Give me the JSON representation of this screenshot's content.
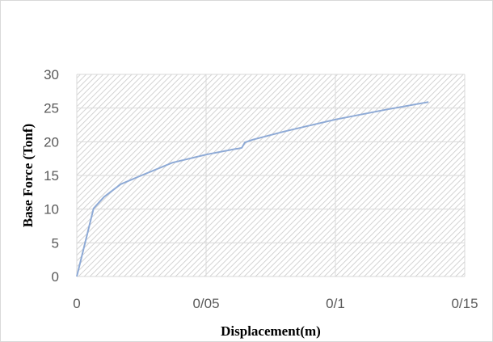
{
  "chart_data": {
    "type": "line",
    "title": "",
    "xlabel": "Displacement(m)",
    "ylabel": "Base Force (Tonf)",
    "xlim": [
      0,
      0.15
    ],
    "ylim": [
      0,
      30
    ],
    "x_ticks": [
      0,
      0.05,
      0.1,
      0.15
    ],
    "x_tick_labels": [
      "0",
      "0/05",
      "0/1",
      "0/15"
    ],
    "y_ticks": [
      0,
      5,
      10,
      15,
      20,
      25,
      30
    ],
    "y_tick_labels": [
      "0",
      "5",
      "10",
      "15",
      "20",
      "25",
      "30"
    ],
    "grid": true,
    "legend": "none",
    "background_pattern": "diagonal-hatch",
    "series": [
      {
        "color": "#8eaad6",
        "x": [
          0,
          0.0065,
          0.0105,
          0.017,
          0.025,
          0.037,
          0.05,
          0.0615,
          0.0625,
          0.0638,
          0.065,
          0.068,
          0.08,
          0.1,
          0.12,
          0.136
        ],
        "y": [
          0,
          10.1,
          11.8,
          13.7,
          15.0,
          16.9,
          18.1,
          18.95,
          19.0,
          19.1,
          19.9,
          20.3,
          21.5,
          23.3,
          24.8,
          25.9
        ]
      }
    ]
  }
}
